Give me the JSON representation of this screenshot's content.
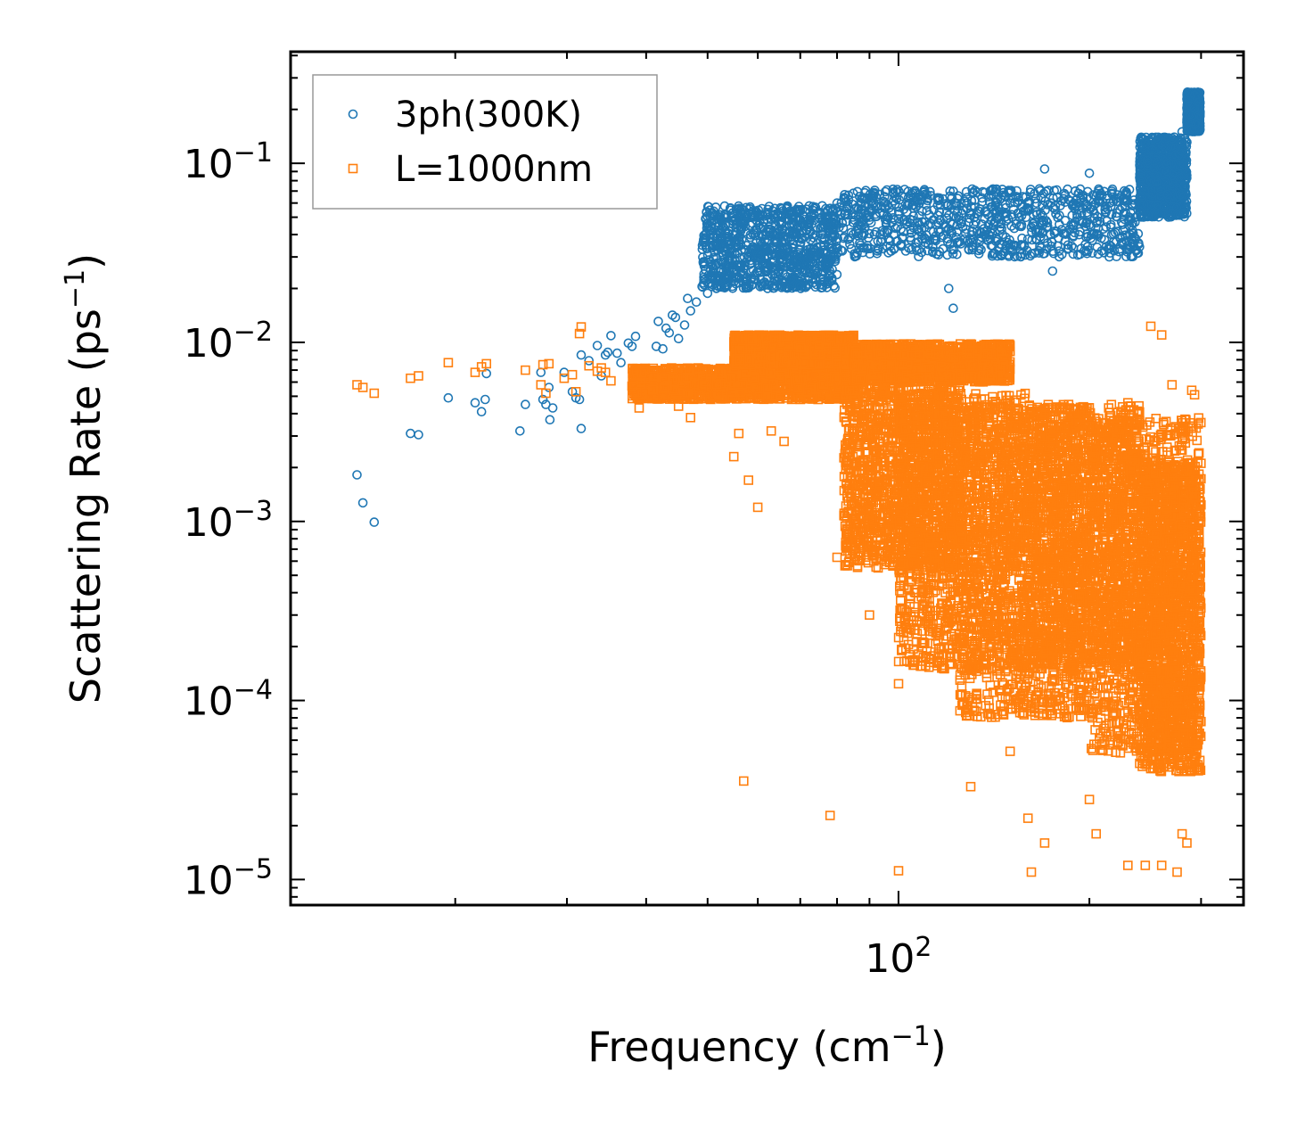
{
  "chart_data": {
    "type": "scatter",
    "xscale": "log",
    "yscale": "log",
    "xlim": [
      11,
      350
    ],
    "ylim": [
      7.2e-06,
      0.42
    ],
    "xlabel_base": "Frequency (cm",
    "xlabel_sup": "−1",
    "xlabel_end": ")",
    "ylabel_base": "Scattering Rate (ps",
    "ylabel_sup": "−1",
    "ylabel_end": ")",
    "x_major_ticks": [
      {
        "value": 100,
        "base": "10",
        "exp": "2"
      }
    ],
    "y_major_ticks": [
      {
        "value": 0.1,
        "base": "10",
        "exp": "−1"
      },
      {
        "value": 0.01,
        "base": "10",
        "exp": "−2"
      },
      {
        "value": 0.001,
        "base": "10",
        "exp": "−3"
      },
      {
        "value": 0.0001,
        "base": "10",
        "exp": "−4"
      },
      {
        "value": 1e-05,
        "base": "10",
        "exp": "−5"
      }
    ],
    "legend_position": "top-left",
    "series": [
      {
        "name": "3ph(300K)",
        "marker": "circle",
        "color": "#1f77b4",
        "points": [
          [
            14.0,
            0.00182
          ],
          [
            14.3,
            0.00127
          ],
          [
            14.9,
            0.00099
          ],
          [
            17.0,
            0.0031
          ],
          [
            17.5,
            0.00305
          ],
          [
            19.5,
            0.0049
          ],
          [
            21.5,
            0.0046
          ],
          [
            22.0,
            0.0041
          ],
          [
            22.3,
            0.0048
          ],
          [
            22.4,
            0.0067
          ],
          [
            25.3,
            0.0032
          ],
          [
            25.8,
            0.0045
          ],
          [
            27.3,
            0.0068
          ],
          [
            27.5,
            0.0048
          ],
          [
            27.8,
            0.0045
          ],
          [
            28.1,
            0.0056
          ],
          [
            28.2,
            0.0037
          ],
          [
            28.5,
            0.0043
          ],
          [
            29.7,
            0.0068
          ],
          [
            30.6,
            0.0053
          ],
          [
            31.0,
            0.0049
          ],
          [
            31.4,
            0.0048
          ],
          [
            31.6,
            0.0033
          ],
          [
            31.6,
            0.0085
          ],
          [
            32.5,
            0.0079
          ],
          [
            33.5,
            0.0096
          ],
          [
            34.0,
            0.0065
          ],
          [
            34.5,
            0.0085
          ],
          [
            34.8,
            0.0088
          ],
          [
            35.2,
            0.0109
          ],
          [
            36.0,
            0.0087
          ],
          [
            36.5,
            0.0077
          ],
          [
            37.5,
            0.0099
          ],
          [
            38.0,
            0.0095
          ],
          [
            38.5,
            0.0108
          ],
          [
            40.0,
            0.0063
          ],
          [
            41.5,
            0.0095
          ],
          [
            41.8,
            0.0131
          ],
          [
            42.5,
            0.0092
          ],
          [
            43.0,
            0.012
          ],
          [
            43.5,
            0.0113
          ],
          [
            44.0,
            0.0142
          ],
          [
            44.5,
            0.0138
          ],
          [
            45.0,
            0.0105
          ],
          [
            46.0,
            0.0125
          ],
          [
            46.5,
            0.0176
          ],
          [
            47.0,
            0.015
          ],
          [
            48.0,
            0.0168
          ],
          [
            49.0,
            0.0205
          ],
          [
            50.0,
            0.0188
          ],
          [
            51.0,
            0.0225
          ],
          [
            52.0,
            0.0205
          ],
          [
            53.0,
            0.025
          ],
          [
            54.0,
            0.0283
          ],
          [
            55.0,
            0.0232
          ],
          [
            56.0,
            0.027
          ],
          [
            57.0,
            0.0258
          ],
          [
            58.0,
            0.03
          ],
          [
            59.0,
            0.0325
          ],
          [
            60.0,
            0.031
          ],
          [
            62.0,
            0.034
          ],
          [
            64.0,
            0.036
          ],
          [
            66.0,
            0.0375
          ],
          [
            68.0,
            0.04
          ],
          [
            70.0,
            0.045
          ],
          [
            72.0,
            0.048
          ],
          [
            75.0,
            0.052
          ],
          [
            78.0,
            0.056
          ],
          [
            80.0,
            0.06
          ],
          [
            85.0,
            0.052
          ],
          [
            90.0,
            0.05
          ],
          [
            100.0,
            0.049
          ],
          [
            110.0,
            0.047
          ],
          [
            120.0,
            0.02
          ],
          [
            122.0,
            0.0155
          ],
          [
            130.0,
            0.053
          ],
          [
            150.0,
            0.06
          ],
          [
            170.0,
            0.093
          ],
          [
            175.0,
            0.025
          ],
          [
            190.0,
            0.07
          ],
          [
            200.0,
            0.088
          ],
          [
            215.0,
            0.03
          ],
          [
            250.0,
            0.08
          ],
          [
            280.0,
            0.15
          ],
          [
            288.0,
            0.21
          ],
          [
            293.0,
            0.24
          ],
          [
            296.0,
            0.23
          ],
          [
            298.0,
            0.22
          ]
        ],
        "cloud": [
          {
            "x0": 49,
            "x1": 80,
            "y0": 0.02,
            "y1": 0.058
          },
          {
            "x0": 80,
            "x1": 240,
            "y0": 0.03,
            "y1": 0.072
          },
          {
            "x0": 240,
            "x1": 285,
            "y0": 0.05,
            "y1": 0.14
          },
          {
            "x0": 285,
            "x1": 299,
            "y0": 0.15,
            "y1": 0.25
          }
        ]
      },
      {
        "name": "L=1000nm",
        "marker": "square",
        "color": "#ff7f0e",
        "points": [
          [
            14.0,
            0.0058
          ],
          [
            14.3,
            0.0056
          ],
          [
            14.9,
            0.0052
          ],
          [
            17.0,
            0.0063
          ],
          [
            17.5,
            0.0065
          ],
          [
            19.5,
            0.0077
          ],
          [
            21.5,
            0.0068
          ],
          [
            22.0,
            0.0073
          ],
          [
            22.4,
            0.0076
          ],
          [
            25.8,
            0.007
          ],
          [
            27.3,
            0.0058
          ],
          [
            27.5,
            0.0075
          ],
          [
            27.8,
            0.0052
          ],
          [
            28.1,
            0.0076
          ],
          [
            29.7,
            0.0063
          ],
          [
            30.6,
            0.0066
          ],
          [
            31.0,
            0.0053
          ],
          [
            31.4,
            0.0112
          ],
          [
            31.6,
            0.0122
          ],
          [
            32.5,
            0.0074
          ],
          [
            33.5,
            0.0069
          ],
          [
            34.0,
            0.0072
          ],
          [
            34.5,
            0.0068
          ],
          [
            35.2,
            0.0061
          ],
          [
            38.0,
            0.0057
          ],
          [
            39.0,
            0.0043
          ],
          [
            42.5,
            0.005
          ],
          [
            45.0,
            0.0044
          ],
          [
            47.0,
            0.0038
          ],
          [
            55.0,
            0.0023
          ],
          [
            56.0,
            0.0031
          ],
          [
            58.0,
            0.0017
          ],
          [
            60.0,
            0.0012
          ],
          [
            63.0,
            0.0032
          ],
          [
            66.0,
            0.0028
          ],
          [
            57.0,
            3.55e-05
          ],
          [
            78.0,
            2.28e-05
          ],
          [
            80.0,
            0.00063
          ],
          [
            90.0,
            0.0003
          ],
          [
            95.0,
            0.00125
          ],
          [
            100.0,
            0.000124
          ],
          [
            100.0,
            1.12e-05
          ],
          [
            110.0,
            0.00027
          ],
          [
            125.0,
            0.00013
          ],
          [
            128.0,
            8.2e-05
          ],
          [
            130.0,
            3.3e-05
          ],
          [
            150.0,
            5.2e-05
          ],
          [
            160.0,
            2.2e-05
          ],
          [
            162.0,
            1.1e-05
          ],
          [
            170.0,
            1.6e-05
          ],
          [
            200.0,
            2.8e-05
          ],
          [
            205.0,
            1.8e-05
          ],
          [
            230.0,
            1.2e-05
          ],
          [
            245.0,
            1.2e-05
          ],
          [
            260.0,
            1.2e-05
          ],
          [
            275.0,
            1.1e-05
          ],
          [
            280.0,
            1.8e-05
          ],
          [
            285.0,
            1.6e-05
          ],
          [
            250.0,
            0.0123
          ],
          [
            260.0,
            0.011
          ],
          [
            290.0,
            0.0054
          ],
          [
            293.0,
            0.0051
          ],
          [
            270.0,
            0.0058
          ],
          [
            280.0,
            0.0025
          ],
          [
            235.0,
            0.0042
          ],
          [
            230.0,
            0.0046
          ]
        ],
        "cloud": [
          {
            "x0": 38,
            "x1": 85,
            "y0": 0.0048,
            "y1": 0.0072
          },
          {
            "x0": 55,
            "x1": 85,
            "y0": 0.0075,
            "y1": 0.011
          },
          {
            "x0": 85,
            "x1": 150,
            "y0": 0.006,
            "y1": 0.0098
          },
          {
            "x0": 82,
            "x1": 125,
            "y0": 0.00055,
            "y1": 0.0058
          },
          {
            "x0": 100,
            "x1": 160,
            "y0": 0.00015,
            "y1": 0.0052
          },
          {
            "x0": 125,
            "x1": 200,
            "y0": 8e-05,
            "y1": 0.0045
          },
          {
            "x0": 160,
            "x1": 240,
            "y0": 0.00015,
            "y1": 0.0045
          },
          {
            "x0": 200,
            "x1": 300,
            "y0": 5e-05,
            "y1": 0.0038
          },
          {
            "x0": 240,
            "x1": 300,
            "y0": 4e-05,
            "y1": 0.0022
          }
        ]
      }
    ]
  }
}
